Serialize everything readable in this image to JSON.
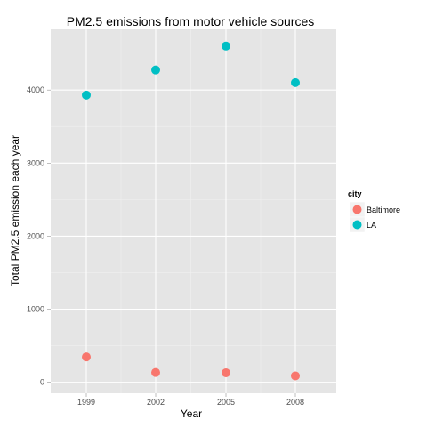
{
  "chart_data": {
    "type": "scatter",
    "title": "PM2.5 emissions from motor vehicle sources",
    "xlabel": "Year",
    "ylabel": "Total PM2.5 emission each year",
    "x_ticks": [
      "1999",
      "2002",
      "2005",
      "2008"
    ],
    "y_ticks": [
      "0",
      "1000",
      "2000",
      "3000",
      "4000"
    ],
    "ylim": [
      -150,
      4830
    ],
    "grid": true,
    "legend": {
      "title": "city",
      "position": "right"
    },
    "series": [
      {
        "name": "Baltimore",
        "color": "#F8766D",
        "x": [
          "1999",
          "2002",
          "2005",
          "2008"
        ],
        "values": [
          347,
          134,
          130,
          88
        ]
      },
      {
        "name": "LA",
        "color": "#00BFC4",
        "x": [
          "1999",
          "2002",
          "2005",
          "2008"
        ],
        "values": [
          3931,
          4274,
          4601,
          4101
        ]
      }
    ]
  }
}
